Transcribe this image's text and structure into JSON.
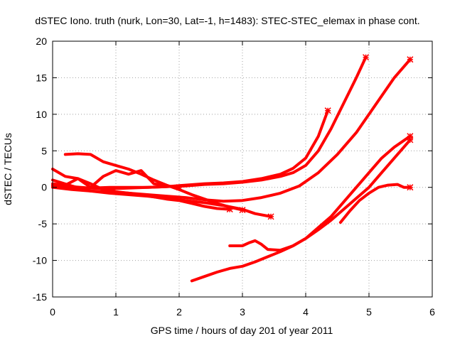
{
  "chart_data": {
    "type": "line",
    "title": "dSTEC Iono. truth (nurk, Lon=30, Lat=-1, h=1483): STEC-STEC_elemax in phase cont.",
    "xlabel": "GPS time / hours of day 201 of year 2011",
    "ylabel": "dSTEC  / TECUs",
    "xlim": [
      0,
      6
    ],
    "ylim": [
      -15,
      20
    ],
    "xticks": [
      "0",
      "1",
      "2",
      "3",
      "4",
      "5",
      "6"
    ],
    "yticks": [
      "-15",
      "-10",
      "-5",
      "0",
      "5",
      "10",
      "15",
      "20"
    ],
    "grid": true,
    "color": "#ff0000",
    "series": [
      {
        "x": [
          0.0,
          0.3,
          0.6,
          0.9,
          1.2,
          1.5,
          1.8,
          2.1,
          2.4,
          2.7,
          3.0,
          3.3,
          3.6,
          3.8,
          4.0,
          4.2,
          4.35
        ],
        "y": [
          0.2,
          0.0,
          -0.1,
          0.0,
          0.0,
          0.0,
          0.1,
          0.3,
          0.5,
          0.6,
          0.8,
          1.2,
          1.8,
          2.6,
          4.0,
          7.0,
          10.5
        ]
      },
      {
        "x": [
          0.0,
          0.3,
          0.6,
          0.9,
          1.2,
          1.5,
          1.8,
          2.1,
          2.4,
          2.7,
          3.0,
          3.3,
          3.6,
          3.8,
          4.0,
          4.2,
          4.4,
          4.6,
          4.8,
          4.95
        ],
        "y": [
          0.3,
          0.1,
          -0.1,
          -0.2,
          -0.1,
          0.0,
          0.1,
          0.2,
          0.4,
          0.5,
          0.7,
          1.0,
          1.5,
          2.0,
          3.0,
          5.0,
          8.0,
          11.5,
          15.0,
          17.8
        ]
      },
      {
        "x": [
          0.0,
          0.3,
          0.6,
          0.9,
          1.2,
          1.5,
          1.8,
          2.1,
          2.4,
          2.7,
          3.0,
          3.3,
          3.6,
          3.9,
          4.2,
          4.5,
          4.8,
          5.0,
          5.2,
          5.4,
          5.65
        ],
        "y": [
          0.0,
          -0.3,
          -0.5,
          -0.6,
          -0.8,
          -1.0,
          -1.2,
          -1.4,
          -1.7,
          -1.9,
          -1.8,
          -1.4,
          -0.8,
          0.2,
          2.0,
          4.5,
          7.5,
          10.0,
          12.5,
          15.0,
          17.5
        ]
      },
      {
        "x": [
          0.0,
          0.2,
          0.4,
          0.6,
          0.8,
          1.0,
          1.2,
          1.4,
          1.6,
          1.8,
          2.0,
          2.2,
          2.4,
          2.6,
          2.8
        ],
        "y": [
          2.5,
          1.5,
          1.2,
          0.5,
          -0.3,
          -0.6,
          -0.8,
          -1.0,
          -1.3,
          -1.6,
          -1.8,
          -2.2,
          -2.6,
          -2.9,
          -3.0
        ]
      },
      {
        "x": [
          0.0,
          0.3,
          0.6,
          0.9,
          1.2,
          1.5,
          1.8,
          2.1,
          2.4,
          2.7,
          3.0,
          3.2,
          3.45
        ],
        "y": [
          1.0,
          0.2,
          -0.5,
          -0.8,
          -1.0,
          -1.2,
          -1.5,
          -1.8,
          -2.1,
          -2.5,
          -3.0,
          -3.6,
          -4.0
        ]
      },
      {
        "x": [
          0.2,
          0.4,
          0.6,
          0.8,
          1.0,
          1.2,
          1.4,
          1.6,
          1.8,
          2.0,
          2.2,
          2.4,
          2.6,
          2.8,
          3.0
        ],
        "y": [
          4.5,
          4.6,
          4.5,
          3.5,
          3.0,
          2.5,
          1.8,
          1.0,
          0.3,
          -0.3,
          -1.0,
          -1.6,
          -2.2,
          -2.7,
          -3.1
        ]
      },
      {
        "x": [
          0.0,
          0.2,
          0.4,
          0.6,
          0.8,
          1.0,
          1.2,
          1.4,
          1.6,
          1.8,
          2.0
        ],
        "y": [
          0.5,
          0.3,
          1.2,
          0.0,
          1.5,
          2.3,
          1.8,
          2.3,
          0.5,
          0.2,
          0.0
        ]
      },
      {
        "x": [
          2.2,
          2.4,
          2.6,
          2.8,
          3.0,
          3.2,
          3.4,
          3.6,
          3.8,
          4.0,
          4.2,
          4.4,
          4.6,
          4.8,
          5.0,
          5.2,
          5.4,
          5.65
        ],
        "y": [
          -12.8,
          -12.2,
          -11.6,
          -11.1,
          -10.8,
          -10.2,
          -9.5,
          -8.8,
          -8.0,
          -7.0,
          -5.8,
          -4.5,
          -3.0,
          -1.5,
          0.0,
          2.0,
          4.0,
          6.5
        ]
      },
      {
        "x": [
          2.8,
          3.0,
          3.1,
          3.2,
          3.3,
          3.4,
          3.6,
          3.8,
          4.0,
          4.2,
          4.4,
          4.6,
          4.8,
          5.0,
          5.2,
          5.4,
          5.65
        ],
        "y": [
          -8.0,
          -8.0,
          -7.6,
          -7.3,
          -7.8,
          -8.5,
          -8.6,
          -8.0,
          -7.0,
          -5.5,
          -4.0,
          -2.0,
          0.0,
          2.0,
          4.0,
          5.5,
          7.0
        ]
      },
      {
        "x": [
          4.55,
          4.7,
          4.85,
          5.0,
          5.15,
          5.3,
          5.45,
          5.55,
          5.65
        ],
        "y": [
          -4.8,
          -3.2,
          -1.8,
          -0.8,
          0.0,
          0.3,
          0.4,
          0.0,
          0.0
        ]
      }
    ]
  }
}
